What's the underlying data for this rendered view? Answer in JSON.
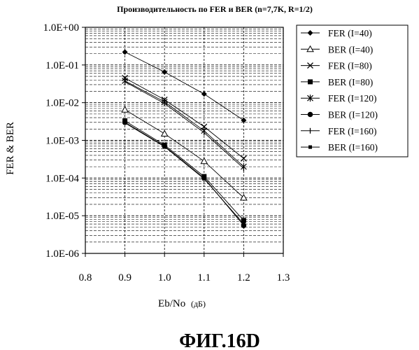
{
  "figure_caption": "ФИГ.16D",
  "chart_data": {
    "type": "line",
    "title": "Производительность по FER и BER (n=7,7K, R=1/2)",
    "xlabel_main": "Eb/No",
    "xlabel_unit": "(дБ)",
    "ylabel": "FER & BER",
    "x_scale": "linear",
    "y_scale": "log",
    "xlim": [
      0.8,
      1.3
    ],
    "ylim": [
      1e-06,
      1
    ],
    "x_ticks": [
      0.8,
      0.9,
      1.0,
      1.1,
      1.2,
      1.3
    ],
    "x_tick_labels": [
      "0.8",
      "0.9",
      "1.0",
      "1.1",
      "1.2",
      "1.3"
    ],
    "y_ticks": [
      1,
      0.1,
      0.01,
      0.001,
      0.0001,
      1e-05,
      1e-06
    ],
    "y_tick_labels": [
      "1.0E+00",
      "1.0E-01",
      "1.0E-02",
      "1.0E-03",
      "1.0E-04",
      "1.0E-05",
      "1.0E-06"
    ],
    "grid": true,
    "legend_position": "right",
    "x": [
      0.9,
      1.0,
      1.1,
      1.2
    ],
    "series": [
      {
        "name": "FER (I=40)",
        "marker": "diamond",
        "values": [
          0.22,
          0.065,
          0.017,
          0.0034
        ]
      },
      {
        "name": "BER (I=40)",
        "marker": "triangle-open",
        "values": [
          0.0065,
          0.0015,
          0.00028,
          3e-05
        ]
      },
      {
        "name": "FER (I=80)",
        "marker": "x",
        "values": [
          0.045,
          0.012,
          0.0023,
          0.00033
        ]
      },
      {
        "name": "BER (I=80)",
        "marker": "square",
        "values": [
          0.0033,
          0.00075,
          0.00011,
          7.5e-06
        ]
      },
      {
        "name": "FER (I=120)",
        "marker": "star",
        "values": [
          0.038,
          0.0105,
          0.0018,
          0.0002
        ]
      },
      {
        "name": "BER (I=120)",
        "marker": "circle",
        "values": [
          0.003,
          0.0007,
          0.0001,
          5.5e-06
        ]
      },
      {
        "name": "FER (I=160)",
        "marker": "tick",
        "values": [
          0.036,
          0.0095,
          0.0016,
          0.00018
        ]
      },
      {
        "name": "BER (I=160)",
        "marker": "square-small",
        "values": [
          0.0029,
          0.00068,
          9.5e-05,
          6e-06
        ]
      }
    ]
  }
}
